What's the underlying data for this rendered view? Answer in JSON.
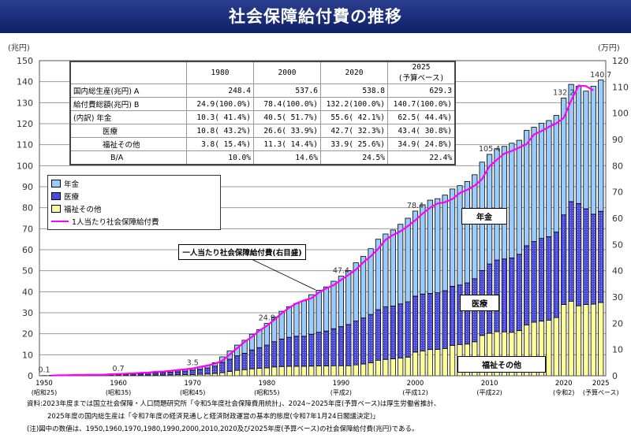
{
  "title": "社会保障給付費の推移",
  "chart_data": {
    "type": "bar",
    "stacked": true,
    "title": "社会保障給付費の推移",
    "left_axis": {
      "unit": "(兆円)",
      "ylim": [
        0,
        150
      ],
      "ticks": [
        0,
        10,
        20,
        30,
        40,
        50,
        60,
        70,
        80,
        90,
        100,
        110,
        120,
        130,
        140,
        150
      ]
    },
    "right_axis": {
      "unit": "(万円)",
      "ylim": [
        0,
        120
      ],
      "ticks": [
        0,
        10,
        20,
        30,
        40,
        50,
        60,
        70,
        80,
        90,
        100,
        110,
        120
      ]
    },
    "x_start": 1950,
    "x_ticks": [
      {
        "year": "1950",
        "era": "(昭和25)",
        "i": 0
      },
      {
        "year": "1960",
        "era": "(昭和35)",
        "i": 10
      },
      {
        "year": "1970",
        "era": "(昭和45)",
        "i": 20
      },
      {
        "year": "1980",
        "era": "(昭和55)",
        "i": 30
      },
      {
        "year": "1990",
        "era": "(平成2)",
        "i": 40
      },
      {
        "year": "2000",
        "era": "(平成12)",
        "i": 50
      },
      {
        "year": "2010",
        "era": "(平成22)",
        "i": 60
      },
      {
        "year": "2020",
        "era": "(令和2)",
        "i": 70
      },
      {
        "year": "2025",
        "era": "(予算ベース)",
        "i": 75
      }
    ],
    "series": [
      {
        "name": "年金",
        "color": "#99ccff",
        "values": [
          0.01,
          0.02,
          0.02,
          0.03,
          0.03,
          0.04,
          0.04,
          0.04,
          0.05,
          0.08,
          0.14,
          0.16,
          0.2,
          0.24,
          0.3,
          0.35,
          0.42,
          0.5,
          0.58,
          0.68,
          0.86,
          1.0,
          1.2,
          1.6,
          2.6,
          3.9,
          5.1,
          6.2,
          7.5,
          8.6,
          10.3,
          11.8,
          13.2,
          14.6,
          15.6,
          16.9,
          18.8,
          20.0,
          21.0,
          22.6,
          24.0,
          25.7,
          27.7,
          29.3,
          31.3,
          33.5,
          34.7,
          36.2,
          37.9,
          39.8,
          40.5,
          42.5,
          44.4,
          44.8,
          45.5,
          46.3,
          47.3,
          48.3,
          49.5,
          51.6,
          52.2,
          53.0,
          53.6,
          54.6,
          54.3,
          54.9,
          54.4,
          54.8,
          55.3,
          55.5,
          55.6,
          55.8,
          55.8,
          56.0,
          60.9,
          62.5
        ]
      },
      {
        "name": "医療",
        "color": "#4a4adf",
        "values": [
          0.05,
          0.1,
          0.1,
          0.15,
          0.15,
          0.2,
          0.2,
          0.2,
          0.25,
          0.32,
          0.39,
          0.44,
          0.55,
          0.66,
          0.85,
          0.9,
          1.08,
          1.25,
          1.42,
          1.65,
          2.07,
          2.4,
          2.85,
          3.5,
          4.9,
          5.8,
          6.9,
          7.8,
          9.0,
          9.8,
          10.8,
          12.0,
          13.1,
          13.8,
          14.3,
          14.3,
          15.2,
          16.0,
          16.6,
          17.6,
          18.6,
          19.6,
          20.9,
          21.9,
          23.0,
          24.1,
          25.0,
          25.1,
          25.8,
          26.3,
          26.6,
          27.1,
          26.7,
          26.9,
          27.5,
          28.2,
          28.3,
          29.1,
          30.0,
          30.9,
          33.0,
          34.1,
          34.7,
          35.4,
          36.3,
          37.7,
          38.4,
          39.4,
          39.7,
          40.7,
          42.7,
          47.4,
          48.7,
          45.6,
          42.8,
          43.4
        ]
      },
      {
        "name": "福祉その他",
        "color": "#ffff99",
        "values": [
          0.04,
          0.08,
          0.08,
          0.12,
          0.12,
          0.16,
          0.16,
          0.16,
          0.2,
          0.2,
          0.17,
          0.2,
          0.25,
          0.3,
          0.35,
          0.35,
          0.4,
          0.45,
          0.5,
          0.57,
          0.57,
          0.7,
          0.85,
          1.1,
          1.5,
          2.1,
          2.6,
          2.9,
          3.3,
          3.6,
          3.8,
          4.2,
          4.4,
          4.5,
          4.5,
          4.5,
          4.6,
          4.7,
          4.7,
          4.8,
          4.8,
          4.8,
          5.2,
          5.6,
          6.2,
          7.4,
          7.8,
          8.1,
          8.4,
          8.9,
          11.3,
          11.8,
          12.5,
          12.6,
          13.0,
          14.4,
          14.9,
          15.1,
          16.2,
          19.2,
          20.2,
          21.0,
          20.9,
          20.7,
          21.5,
          24.2,
          25.5,
          26.0,
          26.5,
          27.7,
          33.9,
          35.5,
          33.3,
          33.9,
          34.1,
          34.9
        ]
      }
    ],
    "line": {
      "name": "1人当たり社会保障給付費",
      "axis": "right",
      "color": "#ff00ff",
      "values": [
        0.1,
        0.2,
        0.2,
        0.3,
        0.3,
        0.4,
        0.4,
        0.4,
        0.6,
        0.7,
        0.8,
        0.9,
        1.1,
        1.2,
        1.5,
        1.6,
        1.9,
        2.2,
        2.5,
        2.8,
        3.4,
        3.9,
        4.6,
        5.7,
        8.1,
        10.5,
        12.9,
        14.8,
        17.2,
        19.0,
        21.3,
        23.8,
        25.9,
        27.6,
        28.7,
        29.5,
        31.7,
        33.3,
        34.5,
        36.5,
        38.4,
        40.4,
        43.2,
        45.5,
        48.3,
        51.8,
        53.6,
        55.0,
        57.0,
        59.2,
        61.8,
        64.0,
        65.6,
        66.1,
        67.3,
        69.6,
        70.8,
        72.4,
        74.9,
        79.8,
        82.3,
        84.6,
        85.6,
        86.9,
        88.2,
        91.9,
        93.2,
        94.8,
        96.1,
        98.2,
        104.8,
        110.5,
        110.3,
        108.7
      ]
    },
    "data_labels": [
      {
        "i": 0,
        "text": "0.1",
        "value": 0.1
      },
      {
        "i": 10,
        "text": "0.7",
        "value": 0.7
      },
      {
        "i": 20,
        "text": "3.5",
        "value": 3.5
      },
      {
        "i": 30,
        "text": "24.9",
        "value": 24.9
      },
      {
        "i": 40,
        "text": "47.4",
        "value": 47.4
      },
      {
        "i": 50,
        "text": "78.4",
        "value": 78.4
      },
      {
        "i": 60,
        "text": "105.4",
        "value": 105.4
      },
      {
        "i": 70,
        "text": "132.2",
        "value": 132.2
      },
      {
        "i": 75,
        "text": "140.7",
        "value": 140.7
      }
    ],
    "annotations": {
      "line_label": "一人当たり社会保障給付費(右目盛)",
      "pension": "年金",
      "medical": "医療",
      "welfare": "福祉その他"
    }
  },
  "table": {
    "headers": [
      "1980",
      "2000",
      "2020",
      "2025",
      "(予算ベース)"
    ],
    "rows": [
      {
        "label": "国内総生産(兆円) A",
        "cells": [
          "248.4",
          "537.6",
          "538.8",
          "629.3"
        ]
      },
      {
        "label": "給付費総額(兆円) B",
        "cells": [
          "24.9(100.0%)",
          "78.4(100.0%)",
          "132.2(100.0%)",
          "140.7(100.0%)"
        ]
      },
      {
        "label": "(内訳) 年金",
        "cells": [
          "10.3( 41.4%)",
          "40.5( 51.7%)",
          "55.6( 42.1%)",
          "62.5( 44.4%)"
        ]
      },
      {
        "label": "医療",
        "cells": [
          "10.8( 43.2%)",
          "26.6( 33.9%)",
          "42.7( 32.3%)",
          "43.4( 30.8%)"
        ]
      },
      {
        "label": "福祉その他",
        "cells": [
          "3.8( 15.4%)",
          "11.3( 14.4%)",
          "33.9( 25.6%)",
          "34.9( 24.8%)"
        ]
      },
      {
        "label": "B/A",
        "cells": [
          "10.0%",
          "14.6%",
          "24.5%",
          "22.4%"
        ]
      }
    ]
  },
  "legend": [
    "年金",
    "医療",
    "福祉その他",
    "1人当たり社会保障給付費"
  ],
  "notes": [
    "資料:2023年度までは国立社会保障・人口問題研究所「令和5年度社会保障費用統計」、2024~2025年度(予算ベース)は厚生労働省推計、",
    "2025年度の国内総生産は「令和7年度の経済見通しと経済財政運営の基本的態度(令和7年1月24日閣議決定)」",
    "(注)図中の数値は、1950,1960,1970,1980,1990,2000,2010,2020及び2025年度(予算ベース)の社会保障給付費(兆円)である。"
  ]
}
